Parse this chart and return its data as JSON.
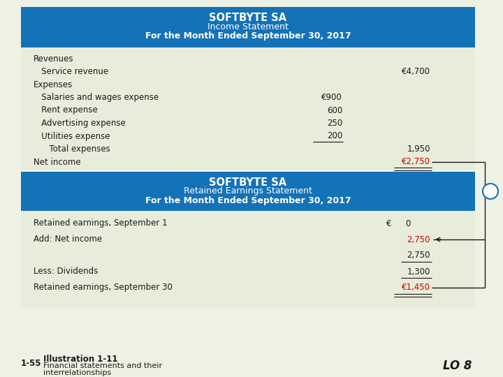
{
  "bg_color": "#eef2e4",
  "header_blue": "#1472b8",
  "body_bg": "#e8ecda",
  "red_color": "#cc0000",
  "black_color": "#1a1a1a",
  "income_title1": "SOFTBYTE SA",
  "income_title2": "Income Statement",
  "income_title3": "For the Month Ended September 30, 2017",
  "retained_title1": "SOFTBYTE SA",
  "retained_title2": "Retained Earnings Statement",
  "retained_title3": "For the Month Ended September 30, 2017",
  "footer_page": "1-55",
  "footer_bold": "Illustration 1-11",
  "footer_line1": "Financial statements and their",
  "footer_line2": "interrelationships",
  "footer_right": "LO 8",
  "income_rows": [
    {
      "label": "Revenues",
      "indent": 0,
      "col1": "",
      "col2": "",
      "red": false,
      "ul1": false,
      "du2": false
    },
    {
      "label": "   Service revenue",
      "indent": 0,
      "col1": "",
      "col2": "€4,700",
      "red": false,
      "ul1": false,
      "du2": false
    },
    {
      "label": "Expenses",
      "indent": 0,
      "col1": "",
      "col2": "",
      "red": false,
      "ul1": false,
      "du2": false
    },
    {
      "label": "   Salaries and wages expense",
      "indent": 0,
      "col1": "€900",
      "col2": "",
      "red": false,
      "ul1": false,
      "du2": false
    },
    {
      "label": "   Rent expense",
      "indent": 0,
      "col1": "600",
      "col2": "",
      "red": false,
      "ul1": false,
      "du2": false
    },
    {
      "label": "   Advertising expense",
      "indent": 0,
      "col1": "250",
      "col2": "",
      "red": false,
      "ul1": false,
      "du2": false
    },
    {
      "label": "   Utilities expense",
      "indent": 0,
      "col1": "200",
      "col2": "",
      "red": false,
      "ul1": true,
      "du2": false
    },
    {
      "label": "      Total expenses",
      "indent": 0,
      "col1": "",
      "col2": "1,950",
      "red": false,
      "ul1": false,
      "du2": false
    },
    {
      "label": "Net income",
      "indent": 0,
      "col1": "",
      "col2": "€2,750",
      "red": true,
      "ul1": false,
      "du2": true
    }
  ],
  "retained_rows": [
    {
      "label": "Retained earnings, September 1",
      "col1": "€",
      "col2": "0",
      "red": false,
      "ul2": false,
      "du2": false,
      "arrow_in": false
    },
    {
      "label": "Add: Net income",
      "col1": "",
      "col2": "2,750",
      "red": true,
      "ul2": false,
      "du2": false,
      "arrow_in": true
    },
    {
      "label": "",
      "col1": "",
      "col2": "2,750",
      "red": false,
      "ul2": true,
      "du2": false,
      "arrow_in": false
    },
    {
      "label": "Less: Dividends",
      "col1": "",
      "col2": "1,300",
      "red": false,
      "ul2": true,
      "du2": false,
      "arrow_in": false
    },
    {
      "label": "Retained earnings, September 30",
      "col1": "",
      "col2": "€1,450",
      "red": true,
      "ul2": false,
      "du2": true,
      "arrow_in": false,
      "arrow_out": true
    }
  ]
}
